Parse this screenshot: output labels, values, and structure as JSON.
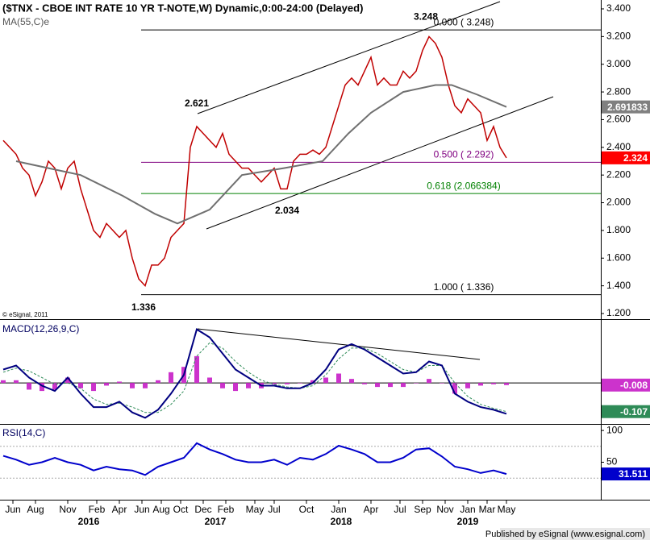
{
  "chart_data": [
    {
      "type": "line",
      "title": "($TNX - CBOE INT RATE 10 YR T-NOTE,W) Dynamic,0:00-24:00 (Delayed)",
      "copyright": "© eSignal, 2011",
      "xlim": [
        0,
        186.25
      ],
      "ylim": [
        1.165,
        3.464
      ],
      "yticks": [
        {
          "value": 1.2,
          "label": "1.200"
        },
        {
          "value": 1.4,
          "label": "1.400"
        },
        {
          "value": 1.6,
          "label": "1.600"
        },
        {
          "value": 1.8,
          "label": "1.800"
        },
        {
          "value": 2.0,
          "label": "2.000"
        },
        {
          "value": 2.2,
          "label": "2.200"
        },
        {
          "value": 2.4,
          "label": "2.400"
        },
        {
          "value": 2.6,
          "label": "2.600"
        },
        {
          "value": 2.8,
          "label": "2.800"
        },
        {
          "value": 3.0,
          "label": "3.000"
        },
        {
          "value": 3.2,
          "label": "3.200"
        },
        {
          "value": 3.4,
          "label": "3.400"
        }
      ],
      "xticks": [
        {
          "value": 4,
          "label": "Jun"
        },
        {
          "value": 11,
          "label": "Aug"
        },
        {
          "value": 21,
          "label": "Nov"
        },
        {
          "value": 30,
          "label": "Feb"
        },
        {
          "value": 37,
          "label": "Apr"
        },
        {
          "value": 44,
          "label": "Jun"
        },
        {
          "value": 50,
          "label": "Aug"
        },
        {
          "value": 56,
          "label": "Oct"
        },
        {
          "value": 63,
          "label": "Dec"
        },
        {
          "value": 70,
          "label": "Feb"
        },
        {
          "value": 79,
          "label": "May"
        },
        {
          "value": 85,
          "label": "Jul"
        },
        {
          "value": 95,
          "label": "Oct"
        },
        {
          "value": 105,
          "label": "Jan"
        },
        {
          "value": 115,
          "label": "Apr"
        },
        {
          "value": 124,
          "label": "Jul"
        },
        {
          "value": 131,
          "label": "Sep"
        },
        {
          "value": 138,
          "label": "Nov"
        },
        {
          "value": 145,
          "label": "Jan"
        },
        {
          "value": 151,
          "label": "Mar"
        },
        {
          "value": 157,
          "label": "May"
        }
      ],
      "year_ticks": [
        {
          "value": 27.5,
          "label": "2016"
        },
        {
          "value": 66.75,
          "label": "2017"
        },
        {
          "value": 105.75,
          "label": "2018"
        },
        {
          "value": 145,
          "label": "2019"
        }
      ],
      "x": [
        1,
        3,
        5,
        7,
        9,
        11,
        13,
        15,
        17,
        19,
        21,
        23,
        25,
        27,
        29,
        31,
        33,
        35,
        37,
        39,
        41,
        43,
        45,
        47,
        49,
        51,
        53,
        55,
        57,
        59,
        61,
        63,
        65,
        67,
        69,
        71,
        73,
        75,
        77,
        79,
        81,
        83,
        85,
        87,
        89,
        91,
        93,
        95,
        97,
        99,
        101,
        103,
        105,
        107,
        109,
        111,
        113,
        115,
        117,
        119,
        121,
        123,
        125,
        127,
        129,
        131,
        133,
        135,
        137,
        139,
        141,
        143,
        145,
        147,
        149,
        151,
        153,
        155,
        157
      ],
      "series": [
        {
          "color": "#c00000",
          "label_box": "#ff0000",
          "values": [
            2.45,
            2.4,
            2.35,
            2.25,
            2.2,
            2.05,
            2.15,
            2.3,
            2.25,
            2.1,
            2.25,
            2.3,
            2.1,
            1.95,
            1.8,
            1.75,
            1.85,
            1.8,
            1.75,
            1.8,
            1.6,
            1.45,
            1.4,
            1.55,
            1.55,
            1.6,
            1.75,
            1.8,
            1.85,
            2.4,
            2.55,
            2.5,
            2.45,
            2.4,
            2.5,
            2.35,
            2.3,
            2.25,
            2.25,
            2.2,
            2.15,
            2.2,
            2.25,
            2.1,
            2.1,
            2.3,
            2.35,
            2.35,
            2.38,
            2.35,
            2.4,
            2.55,
            2.7,
            2.85,
            2.9,
            2.85,
            2.95,
            3.05,
            2.85,
            2.9,
            2.85,
            2.85,
            2.95,
            2.9,
            2.95,
            3.1,
            3.2,
            3.15,
            3.05,
            2.85,
            2.7,
            2.65,
            2.75,
            2.7,
            2.65,
            2.45,
            2.55,
            2.4,
            2.324
          ]
        },
        {
          "name": "MA(55,C)e",
          "color": "#707070",
          "label_box": "#808080",
          "x": [
            5,
            15,
            25,
            38,
            48,
            55,
            65,
            75,
            88,
            100,
            108,
            115,
            125,
            135,
            140,
            148,
            157
          ],
          "values": [
            2.3,
            2.25,
            2.2,
            2.05,
            1.92,
            1.85,
            1.95,
            2.2,
            2.25,
            2.3,
            2.5,
            2.65,
            2.8,
            2.85,
            2.85,
            2.78,
            2.691833
          ]
        }
      ],
      "fib_levels": [
        {
          "value": 3.248,
          "label": "0.000 ( 3.248)",
          "color": "#000000"
        },
        {
          "value": 2.292,
          "label": "0.500 ( 2.292)",
          "color": "#800080"
        },
        {
          "value": 2.066384,
          "label": "0.618 (2.066384)",
          "color": "#008000"
        },
        {
          "value": 1.336,
          "label": "1.000 ( 1.336)",
          "color": "#000000"
        }
      ],
      "annotations": [
        {
          "x": 132,
          "value": 3.248
        },
        {
          "x": 61,
          "value": 2.621
        },
        {
          "x": 89,
          "value": 2.034
        },
        {
          "x": 44.5,
          "value": 1.336
        }
      ]
    },
    {
      "type": "macd",
      "title": "MACD(12,26,9,C)",
      "ylim": [
        -0.15,
        0.232
      ],
      "x": [
        1,
        5,
        9,
        13,
        17,
        21,
        25,
        29,
        33,
        37,
        41,
        45,
        49,
        53,
        57,
        61,
        65,
        69,
        73,
        77,
        81,
        85,
        89,
        93,
        97,
        101,
        105,
        109,
        113,
        117,
        121,
        125,
        129,
        133,
        137,
        141,
        145,
        149,
        153,
        157
      ],
      "series": [
        {
          "kind": "bar",
          "color": "#cc33cc",
          "label_box": "#cc33cc",
          "values": [
            0.01,
            0.01,
            -0.025,
            -0.03,
            -0.025,
            0.02,
            -0.02,
            -0.03,
            -0.01,
            0.005,
            -0.02,
            -0.02,
            0.01,
            0.04,
            0.06,
            0.1,
            0.02,
            -0.02,
            -0.03,
            -0.02,
            -0.02,
            -0.005,
            -0.005,
            0.0,
            0.01,
            0.02,
            0.035,
            0.015,
            -0.005,
            -0.015,
            -0.015,
            -0.015,
            0.0,
            0.015,
            0.0,
            -0.04,
            -0.02,
            -0.01,
            -0.005,
            -0.008
          ]
        },
        {
          "color": "#2e8b57",
          "dash": true,
          "label_box": "#2e8b57",
          "values": [
            0.04,
            0.055,
            0.045,
            0.02,
            -0.005,
            0.0,
            -0.02,
            -0.06,
            -0.08,
            -0.075,
            -0.09,
            -0.11,
            -0.11,
            -0.08,
            -0.03,
            0.1,
            0.15,
            0.13,
            0.08,
            0.04,
            0.01,
            -0.005,
            -0.015,
            -0.02,
            -0.01,
            0.03,
            0.09,
            0.13,
            0.13,
            0.11,
            0.08,
            0.05,
            0.04,
            0.065,
            0.065,
            0.0,
            -0.05,
            -0.08,
            -0.095,
            -0.107
          ]
        },
        {
          "color": "#000080",
          "values": [
            0.05,
            0.065,
            0.02,
            -0.01,
            -0.03,
            0.02,
            -0.04,
            -0.09,
            -0.09,
            -0.07,
            -0.11,
            -0.13,
            -0.1,
            -0.04,
            0.03,
            0.2,
            0.17,
            0.11,
            0.05,
            0.02,
            -0.01,
            -0.01,
            -0.02,
            -0.02,
            0.0,
            0.05,
            0.125,
            0.145,
            0.125,
            0.095,
            0.065,
            0.035,
            0.04,
            0.08,
            0.065,
            -0.04,
            -0.07,
            -0.09,
            -0.1,
            -0.115
          ]
        }
      ]
    },
    {
      "type": "line",
      "title": "RSI(14,C)",
      "ylim": [
        -9,
        109
      ],
      "yticks": [
        50,
        100
      ],
      "guides": [
        75,
        25
      ],
      "x": [
        1,
        5,
        9,
        13,
        17,
        21,
        25,
        29,
        33,
        37,
        41,
        45,
        49,
        53,
        57,
        61,
        65,
        69,
        73,
        77,
        81,
        85,
        89,
        93,
        97,
        101,
        105,
        109,
        113,
        117,
        121,
        125,
        129,
        133,
        137,
        141,
        145,
        149,
        153,
        157
      ],
      "series": [
        {
          "color": "#0000cc",
          "label_box": "#0000cc",
          "values": [
            60,
            54,
            46,
            50,
            57,
            50,
            46,
            37,
            43,
            39,
            37,
            30,
            43,
            50,
            57,
            80,
            70,
            63,
            54,
            50,
            50,
            54,
            46,
            57,
            54,
            63,
            76,
            70,
            63,
            50,
            50,
            57,
            70,
            72,
            59,
            43,
            39,
            33,
            37,
            31.511
          ]
        }
      ]
    }
  ],
  "footer": "Published by eSignal (www.esignal.com)"
}
